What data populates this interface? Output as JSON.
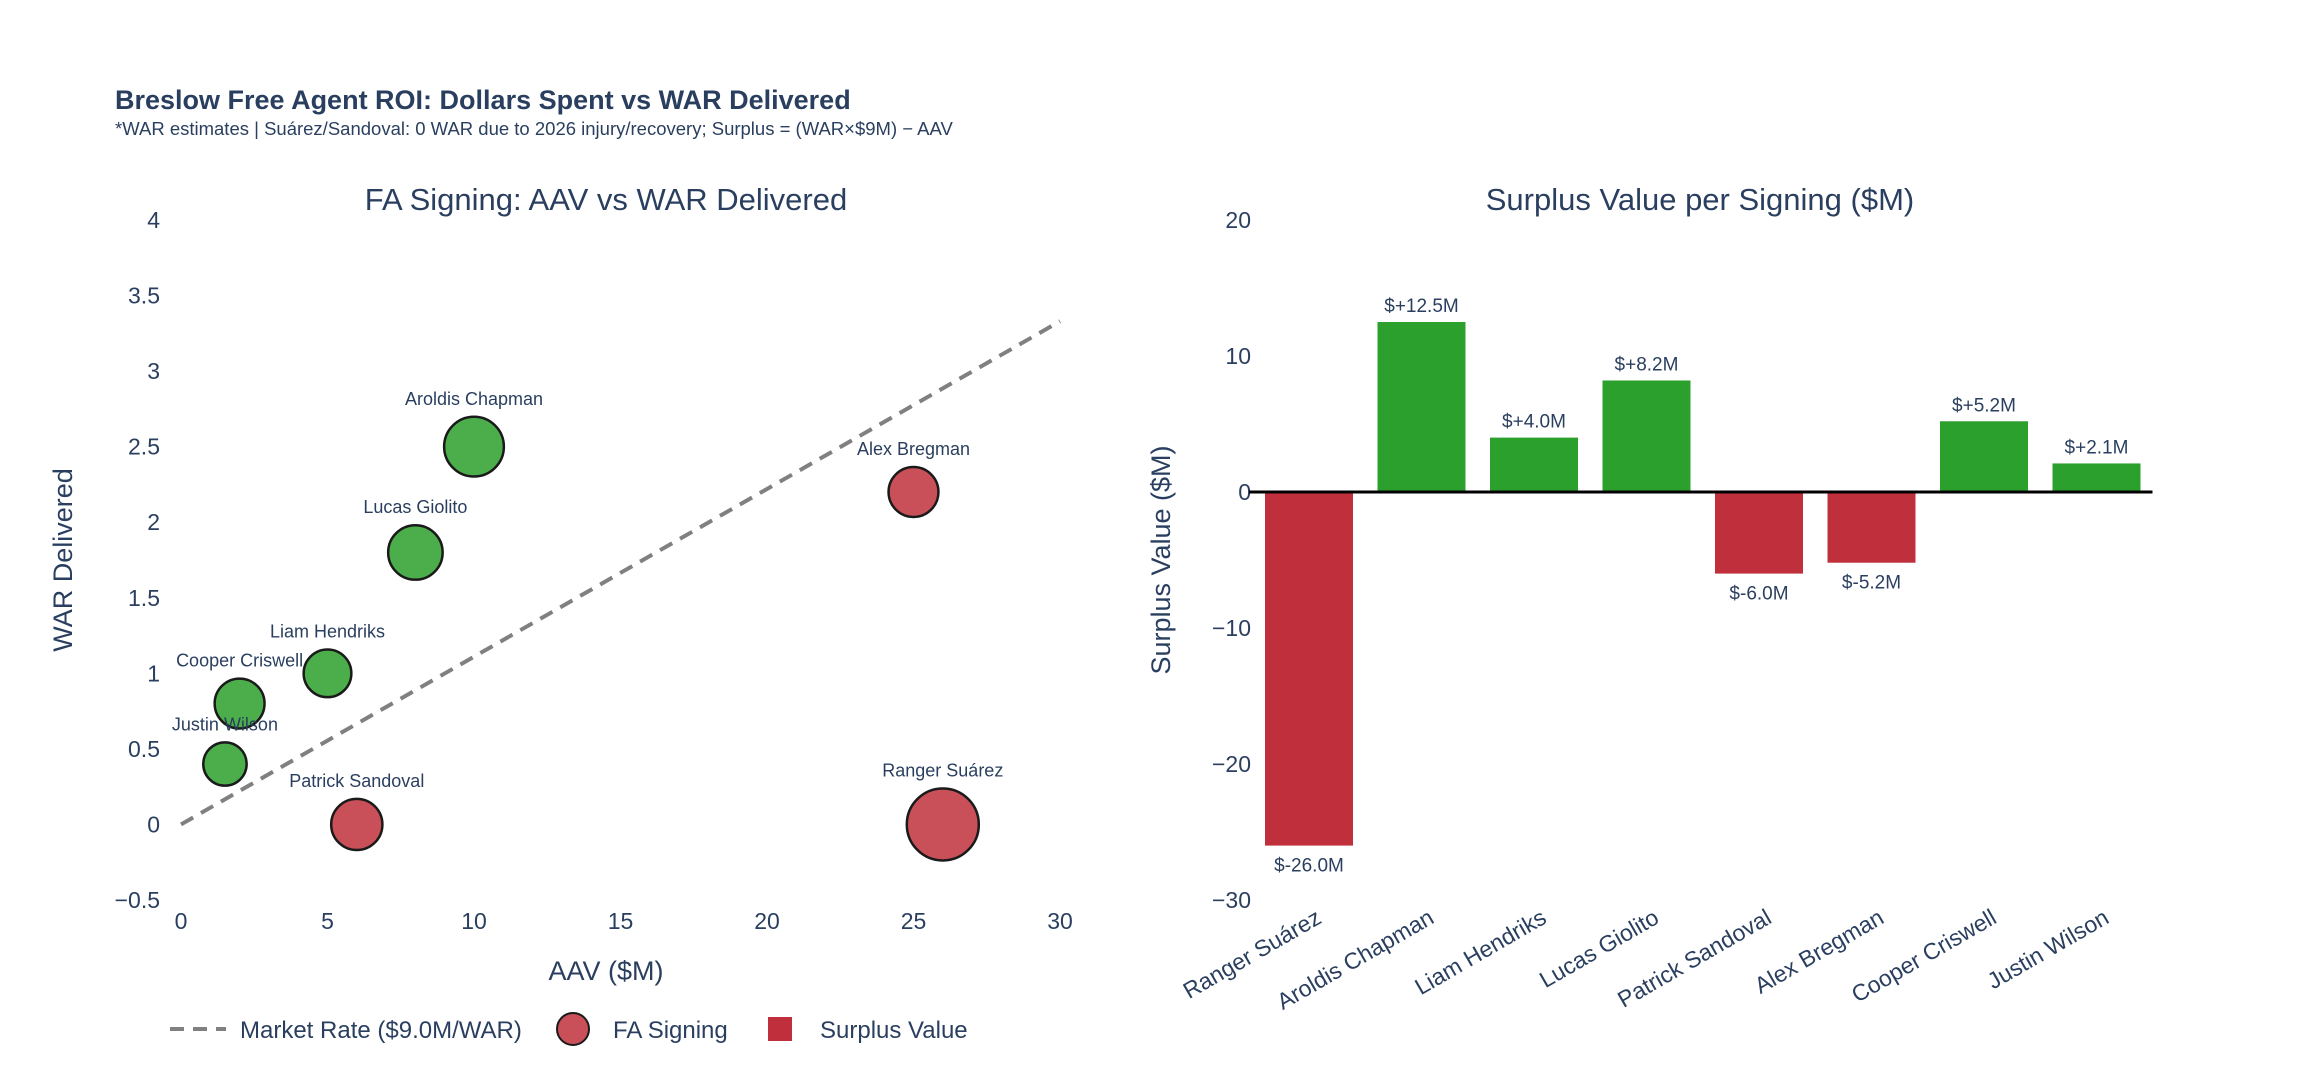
{
  "header": {
    "title": "Breslow Free Agent ROI: Dollars Spent vs WAR Delivered",
    "subtitle": "*WAR estimates | Suárez/Sandoval: 0 WAR due to 2026 injury/recovery; Surplus = (WAR×$9M) − AAV"
  },
  "colors": {
    "positive": "#2ca02c",
    "negative": "#c0303c",
    "text": "#2a3f5f",
    "market_line": "#808080"
  },
  "chart_data": [
    {
      "type": "scatter",
      "title": "FA Signing: AAV vs WAR Delivered",
      "xlabel": "AAV ($M)",
      "ylabel": "WAR Delivered",
      "xlim": [
        0,
        30
      ],
      "ylim": [
        -0.5,
        4
      ],
      "x_ticks": [
        "0",
        "5",
        "10",
        "15",
        "20",
        "25",
        "30"
      ],
      "y_ticks": [
        "−0.5",
        "0",
        "0.5",
        "1",
        "1.5",
        "2",
        "2.5",
        "3",
        "3.5",
        "4"
      ],
      "grid": false,
      "market_line": {
        "name": "Market Rate ($9.0M/WAR)",
        "x": [
          0,
          30
        ],
        "y": [
          0,
          3.33
        ]
      },
      "points": [
        {
          "name": "Ranger Suárez",
          "aav": 26,
          "war": 0,
          "surplus": -26.0
        },
        {
          "name": "Aroldis Chapman",
          "aav": 10,
          "war": 2.5,
          "surplus": 12.5
        },
        {
          "name": "Liam Hendriks",
          "aav": 5,
          "war": 1.0,
          "surplus": 4.0
        },
        {
          "name": "Lucas Giolito",
          "aav": 8,
          "war": 1.8,
          "surplus": 8.2
        },
        {
          "name": "Patrick Sandoval",
          "aav": 6,
          "war": 0,
          "surplus": -6.0
        },
        {
          "name": "Alex Bregman",
          "aav": 25,
          "war": 2.2,
          "surplus": -5.2
        },
        {
          "name": "Cooper Criswell",
          "aav": 2,
          "war": 0.8,
          "surplus": 5.2
        },
        {
          "name": "Justin Wilson",
          "aav": 1.5,
          "war": 0.4,
          "surplus": 2.1
        }
      ]
    },
    {
      "type": "bar",
      "title": "Surplus Value per Signing ($M)",
      "xlabel": "",
      "ylabel": "Surplus Value ($M)",
      "ylim": [
        -30,
        20
      ],
      "y_ticks": [
        "−30",
        "−20",
        "−10",
        "0",
        "10",
        "20"
      ],
      "categories": [
        "Ranger Suárez",
        "Aroldis Chapman",
        "Liam Hendriks",
        "Lucas Giolito",
        "Patrick Sandoval",
        "Alex Bregman",
        "Cooper Criswell",
        "Justin Wilson"
      ],
      "values": [
        -26.0,
        12.5,
        4.0,
        8.2,
        -6.0,
        -5.2,
        5.2,
        2.1
      ],
      "data_labels": [
        "$-26.0M",
        "$+12.5M",
        "$+4.0M",
        "$+8.2M",
        "$-6.0M",
        "$-5.2M",
        "$+5.2M",
        "$+2.1M"
      ]
    }
  ],
  "legend": {
    "position": "bottom-left",
    "items": [
      {
        "label": "Market Rate ($9.0M/WAR)",
        "kind": "dash"
      },
      {
        "label": "FA Signing",
        "kind": "circle"
      },
      {
        "label": "Surplus Value",
        "kind": "square"
      }
    ]
  }
}
